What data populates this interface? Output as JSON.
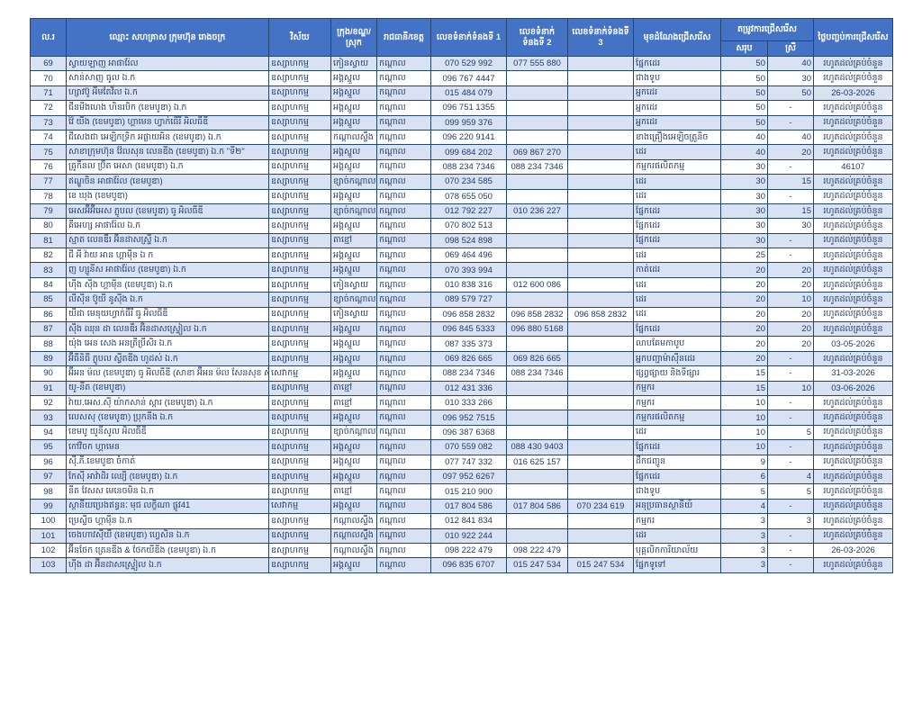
{
  "colors": {
    "header_bg": "#4472c4",
    "header_text": "#ffffff",
    "row_alt_bg": "#d9e2f3",
    "row_bg": "#ffffff",
    "grid_border": "#26466d",
    "body_text": "#203a6b"
  },
  "table": {
    "headers": {
      "no": "ល.រ",
      "company": "ឈ្មោះ សហគ្រាស ក្រុមហ៊ុន រោងចក្រ",
      "sector": "វិស័យ",
      "district": "ក្រុង/ខណ្ឌ/ស្រុក",
      "province": "រាជធានី/ខេត្ត",
      "phone1": "លេខទំនាក់ទំនងទី 1",
      "phone2": "លេខទំនាក់ទំនងទី 2",
      "phone3": "លេខទំនាក់ទំនងទី 3",
      "position": "មុខដំណែងជ្រើសរើស",
      "demand_group": "តម្រូវការជ្រើសរើស",
      "demand_total": "សរុប",
      "demand_female": "ស្រី",
      "end_date": "ថ្ងៃបញ្ចប់ការជ្រើសរើស"
    },
    "rows": [
      [
        "69",
        "ស្វាយឡាញ អាផារ៉ែល",
        "ឧស្សាហកម្ម",
        "កៀនស្វាយ",
        "កណ្តាល",
        "070 529 992",
        "077 555 880",
        "",
        "ផ្នែកដេរ",
        "50",
        "40",
        "រហូតដល់គ្រប់ចំនួន"
      ],
      [
        "70",
        "សាន់សាញ ធូល ឯ.ក",
        "ឧស្សាហកម្ម",
        "អង្គស្នួល",
        "កណ្តាល",
        "096 767 4447",
        "",
        "",
        "ជាងទូប",
        "50",
        "30",
        "រហូតដល់គ្រប់ចំនួន"
      ],
      [
        "71",
        "ហ្សាវប៊ូ អីមតែវិល ឯ.ក",
        "ឧស្សាហកម្ម",
        "អង្គស្នួល",
        "កណ្តាល",
        "015 484 079",
        "",
        "",
        "អ្នកដេរ",
        "50",
        "50",
        "26-03-2026"
      ],
      [
        "72",
        "ជីនមីងហេង ហិនរបិក (ខេមបូឌា) ឯ.ក",
        "ឧស្សាហកម្ម",
        "អង្គស្នួល",
        "កណ្តាល",
        "096 751 1355",
        "",
        "",
        "អ្នកដេរ",
        "50",
        "-",
        "រហូតដល់គ្រប់ចំនួន"
      ],
      [
        "73",
        "វ៉ៃ យីង (ខេមបូឌា) ហ្គាមេន ហ្វាក់ធើរី អិលធីឌី",
        "ឧស្សាហកម្ម",
        "អង្គស្នួល",
        "កណ្តាល",
        "099 959 376",
        "",
        "",
        "អ្នកដេរ",
        "50",
        "-",
        "រហូតដល់គ្រប់ចំនួន"
      ],
      [
        "74",
        "ជីសេងជា អេឡិកទ្រិក អផ្លាយអិន (ខេមបូឌា) ឯ.ក",
        "ឧស្សាហកម្ម",
        "កណ្តាលស្ទឹង",
        "កណ្តាល",
        "096 220 9141",
        "",
        "",
        "ខាងគ្រឿងអេឡិចត្រូនិច",
        "40",
        "40",
        "រហូតដល់គ្រប់ចំនួន"
      ],
      [
        "75",
        "សាខាក្រុមហ៊ុន វ៉ែលសុន លេនឌីង (ខេមបូឌា) ឯ.ក \"ទី២\"",
        "ឧស្សាហកម្ម",
        "អង្គស្នួល",
        "កណ្តាល",
        "099 684 202",
        "069 867 270",
        "",
        "ដេរ",
        "40",
        "20",
        "រហូតដល់គ្រប់ចំនួន"
      ],
      [
        "76",
        "ត្រូកឹនល ប្រ៊ីត អេសា (ខេមបូឌា) ឯ.ក",
        "ឧស្សាហកម្ម",
        "អង្គស្នួល",
        "កណ្តាល",
        "088 234 7346",
        "088 234 7346",
        "",
        "កម្មករផលិតកម្ម",
        "30",
        "-",
        "46107"
      ],
      [
        "77",
        "ឥណ្ឌូចិន អាផារ៉ែល (ខេមបូឌា)",
        "ឧស្សាហកម្ម",
        "ខ្សាច់កណ្តាល",
        "កណ្តាល",
        "070 234 585",
        "",
        "",
        "ដេរ",
        "30",
        "15",
        "រហូតដល់គ្រប់ចំនួន"
      ],
      [
        "78",
        "ខេ ឃុង (ខេមបូឌា)",
        "ឧស្សាហកម្ម",
        "អង្គស្នួល",
        "កណ្តាល",
        "078 655 050",
        "",
        "",
        "ដេរ",
        "30",
        "-",
        "រហូតដល់គ្រប់ចំនួន"
      ],
      [
        "79",
        "អេសអ៊ីអ៊ីអេស ភ្លូបល (ខេមបូឌា) ធូ អិលធីឌី",
        "ឧស្សាហកម្ម",
        "ខ្សាច់កណ្តាល",
        "កណ្តាល",
        "012 792 227",
        "010 236 227",
        "",
        "ផ្នែកដេរ",
        "30",
        "15",
        "រហូតដល់គ្រប់ចំនួន"
      ],
      [
        "80",
        "គីអេហ្ស អាផារ៉ែល ឯ.ក",
        "ឧស្សាហកម្ម",
        "អង្គស្នួល",
        "កណ្តាល",
        "070 802 513",
        "",
        "",
        "ផ្នែកដេរ",
        "30",
        "30",
        "រហូតដល់គ្រប់ចំនួន"
      ],
      [
        "81",
        "ស្មាត លេនឌឺរ អ៊ិនដាសស្ទ្រី ឯ.ក",
        "ឧស្សាហកម្ម",
        "តាខ្មៅ",
        "កណ្តាល",
        "098 524 898",
        "",
        "",
        "ផ្នែកដេរ",
        "30",
        "-",
        "រហូតដល់គ្រប់ចំនួន"
      ],
      [
        "82",
        "ជី អី វ៉ាយ អាន ហ្គាម៉ីន ឯ ក",
        "ឧស្សាហកម្ម",
        "អង្គស្នួល",
        "កណ្តាល",
        "069 464 496",
        "",
        "",
        "ដេរ",
        "25",
        "-",
        "រហូតដល់គ្រប់ចំនួន"
      ],
      [
        "83",
        "ញ ហ្សូនីស អាផារ៉ែល (ខេមបូឌា) ឯ.ក",
        "ឧស្សាហកម្ម",
        "អង្គស្នួល",
        "កណ្តាល",
        "070 393 994",
        "",
        "",
        "កាត់ដេរ",
        "20",
        "20",
        "រហូតដល់គ្រប់ចំនួន"
      ],
      [
        "84",
        "ហុីង ស៊ីង ហ្គាម៉ីន (ខេមបូឌា) ឯ.ក",
        "ឧស្សាហកម្ម",
        "កៀនស្វាយ",
        "កណ្តាល",
        "010 838 316",
        "012 600 086",
        "",
        "ដេរ",
        "20",
        "20",
        "រហូតដល់គ្រប់ចំនួន"
      ],
      [
        "85",
        "លីស៊ីន ប៊ូយី នូស៊ីង ឯ.ក",
        "ឧស្សាហកម្ម",
        "ខ្សាច់កណ្តាល",
        "កណ្តាល",
        "089 579 727",
        "",
        "",
        "ដេរ",
        "20",
        "10",
        "រហូតដល់គ្រប់ចំនួន"
      ],
      [
        "86",
        "យីដា មេនុយហ្វាក់ធឺរី ធូ អិលធីឌី",
        "ឧស្សាហកម្ម",
        "កៀនស្វាយ",
        "កណ្តាល",
        "096 858 2832",
        "096 858 2832",
        "096 858 2832",
        "ដេរ",
        "20",
        "20",
        "រហូតដល់គ្រប់ចំនួន"
      ],
      [
        "87",
        "ស៊ីង ឈុន ដា លេនឌឺរ អ៊ិនដាសស្ទ្រៀល ឯ.ក",
        "ឧស្សាហកម្ម",
        "អង្គស្នួល",
        "កណ្តាល",
        "096 845 5333",
        "096 880 5168",
        "",
        "ផ្នែកដេរ",
        "20",
        "20",
        "រហូតដល់គ្រប់ចំនួន"
      ],
      [
        "88",
        "យ៉ុង អេន សេង អនត្រីប្រីសិរ ឯ.ក",
        "ឧស្សាហកម្ម",
        "អង្គស្នួល",
        "កណ្តាល",
        "087 335 373",
        "",
        "",
        "លាបគែមកាបូប",
        "20",
        "20",
        "03-05-2026"
      ],
      [
        "89",
        "អ៊ីធីនិធី ភ្លូបល ស្វីតឌីង ហូដស់ ឯ.ក",
        "ឧស្សាហកម្ម",
        "អង្គស្នួល",
        "កណ្តាល",
        "069 826 665",
        "069 826 665",
        "",
        "អ្នកបញ្ជាម៉ាស៊ីនដេរ",
        "20",
        "-",
        "រហូតដល់គ្រប់ចំនួន"
      ],
      [
        "90",
        "អ៊ីអន ម៉ល (ខេមបូឌា) ធូ អិលធីឌី (សាខា អ៊ីអន ម៉ល សែនសុខ ស៊ីធី)",
        "សេវាកម្ម",
        "អង្គស្នួល",
        "កណ្តាល",
        "088 234 7346",
        "088 234 7346",
        "",
        "ផ្សព្វផ្សាយ និងទីផ្សារ",
        "15",
        "-",
        "31-03-2026"
      ],
      [
        "91",
        "យូ-នីត (ខេមបូឌា)",
        "ឧស្សាហកម្ម",
        "តាខ្មៅ",
        "កណ្តាល",
        "012 431 336",
        "",
        "",
        "កម្មករ",
        "15",
        "10",
        "03-06-2026"
      ],
      [
        "92",
        "វ៉ាយ.អេស.ស៊ី យ៉ាកសាន់ ស្តារ (ខេមបូឌា) ឯ.ក",
        "ឧស្សាហកម្ម",
        "តាខ្មៅ",
        "កណ្តាល",
        "010 333 266",
        "",
        "",
        "កម្មករ",
        "10",
        "-",
        "រហូតដល់គ្រប់ចំនួន"
      ],
      [
        "93",
        "លេសសុ (ខេមបូឌា) ប្រុកនីង ឯ.ក",
        "ឧស្សាហកម្ម",
        "អង្គស្នួល",
        "កណ្តាល",
        "096 952 7515",
        "",
        "",
        "កម្មករផលិតកម្ម",
        "10",
        "-",
        "រហូតដល់គ្រប់ចំនួន"
      ],
      [
        "94",
        "ខេមបូ យូនីសូល អិលធីឌី",
        "ឧស្សាហកម្ម",
        "ខ្សាច់កណ្តាល",
        "កណ្តាល",
        "096 387 6368",
        "",
        "",
        "ដេរ",
        "10",
        "5",
        "រហូតដល់គ្រប់ចំនួន"
      ],
      [
        "95",
        "កៅវិចក ហ្គាមេន",
        "ឧស្សាហកម្ម",
        "អង្គស្នួល",
        "កណ្តាល",
        "070 559 082",
        "088 430 9403",
        "",
        "ផ្នែកដេរ",
        "10",
        "-",
        "រហូតដល់គ្រប់ចំនួន"
      ],
      [
        "96",
        "ស៊ី.ភី.ខេមបូឌា ចំកាត់",
        "ឧស្សាហកម្ម",
        "អង្គស្នួល",
        "កណ្តាល",
        "077 747 332",
        "016 625 157",
        "",
        "ដឹកជញ្ជូន",
        "9",
        "-",
        "រហូតដល់គ្រប់ចំនួន"
      ],
      [
        "97",
        "កែស៊ី អាវ៉ាដិរ ឈ្យើ (ខេមបូឌា) ឯ.ក",
        "ឧស្សាហកម្ម",
        "អង្គស្នួល",
        "កណ្តាល",
        "097 952 6267",
        "",
        "",
        "ផ្នែកដេរ",
        "6",
        "4",
        "រហូតដល់គ្រប់ចំនួន"
      ],
      [
        "98",
        "នីត វែសស មេនេចមិន ឯ.ក",
        "ឧស្សាហកម្ម",
        "តាខ្មៅ",
        "កណ្តាល",
        "015 210 900",
        "",
        "",
        "ជាងទូប",
        "5",
        "5",
        "រហូតដល់គ្រប់ចំនួន"
      ],
      [
        "99",
        "ស្ថានីយប្រេងឥន្ធនៈ មុជ លក្ខិណា ផ្លូវ41",
        "សេវាកម្ម",
        "អង្គស្នួល",
        "កណ្តាល",
        "017 804 586",
        "017 804 586",
        "070 234 619",
        "អនុប្រធានស្ថានីយ៍",
        "4",
        "-",
        "រហូតដល់គ្រប់ចំនួន"
      ],
      [
        "100",
        "ប្រេស្ទីច ហ្គាម៉ីន ឯ.ក",
        "ឧស្សាហកម្ម",
        "កណ្តាលស្ទឹង",
        "កណ្តាល",
        "012 841 834",
        "",
        "",
        "កម្មករ",
        "3",
        "3",
        "រហូតដល់គ្រប់ចំនួន"
      ],
      [
        "101",
        "ចេងហាវស៊ីយី (ខេមបូឌា) ហ្វេសិន ឯ.ក",
        "ឧស្សាហកម្ម",
        "កណ្តាលស្ទឹង",
        "កណ្តាល",
        "010 922 244",
        "",
        "",
        "ដេរ",
        "3",
        "-",
        "រហូតដល់គ្រប់ចំនួន"
      ],
      [
        "102",
        "អ៊ីនថែក ត្រេនឌីង & ថែកយីឌីង (ខេមបូឌា) ឯ.ក",
        "ឧស្សាហកម្ម",
        "កណ្តាលស្ទឹង",
        "កណ្តាល",
        "098 222 479",
        "098 222 479",
        "",
        "បុគ្គលិកការិយាល័យ",
        "3",
        "-",
        "26-03-2026"
      ],
      [
        "103",
        "ហុីង ដា អ៊ីនដាសស្ទ្រៀល ឯ.ក",
        "ឧស្សាហកម្ម",
        "អង្គស្នួល",
        "កណ្តាល",
        "096 835 6707",
        "015 247 534",
        "015 247 534",
        "ផ្នែកទូទៅ",
        "3",
        "-",
        "រហូតដល់គ្រប់ចំនួន"
      ]
    ]
  }
}
